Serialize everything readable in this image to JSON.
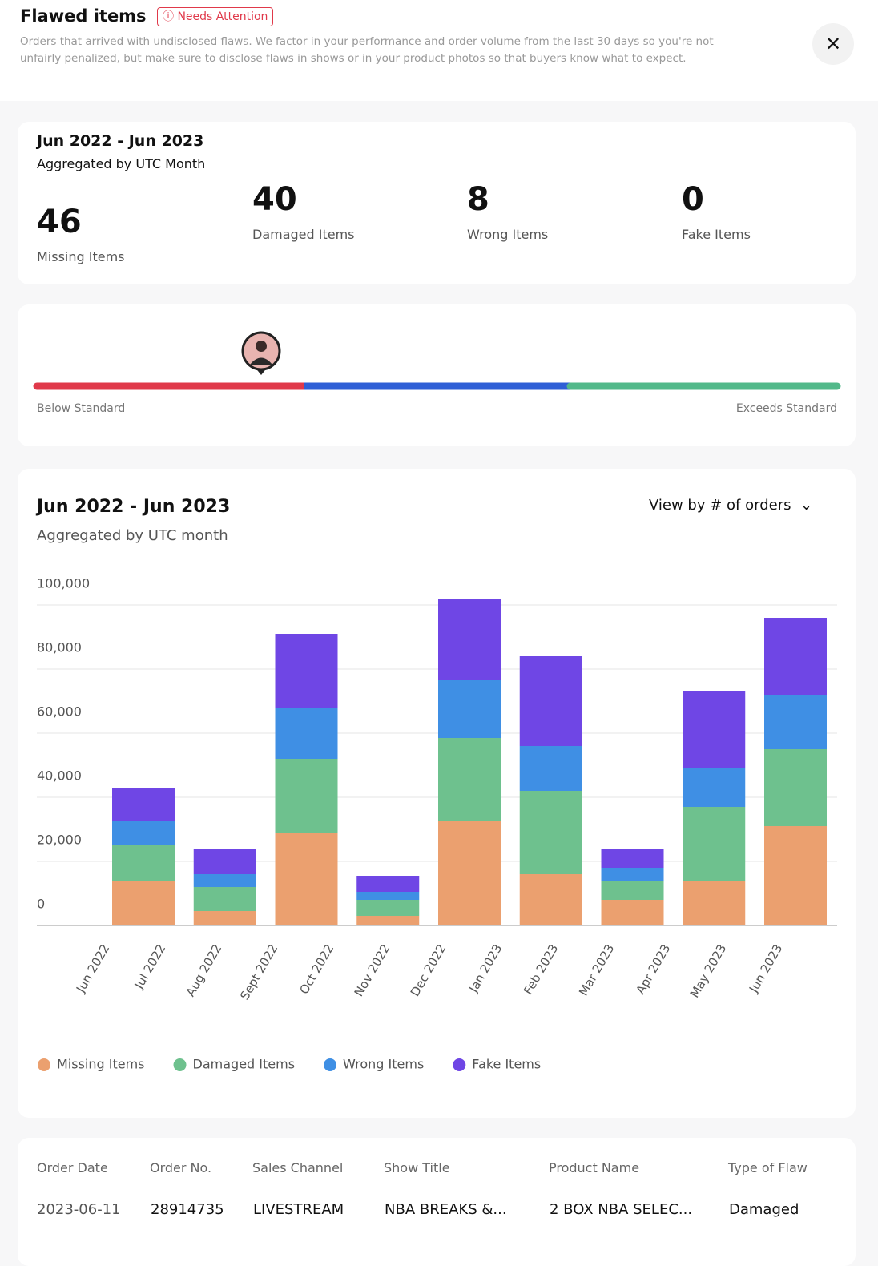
{
  "header": {
    "title": "Flawed items",
    "badge": "Needs Attention",
    "description": "Orders that arrived with undisclosed flaws. We factor in your performance and order volume from the last 30 days so you're not unfairly penalized, but make sure to disclose flaws in shows or in your product photos so that buyers know what to expect."
  },
  "summary": {
    "period": "Jun 2022 - Jun 2023",
    "aggregation": "Aggregated by UTC Month",
    "stats": [
      {
        "value": "46",
        "label": "Missing Items"
      },
      {
        "value": "40",
        "label": "Damaged Items"
      },
      {
        "value": "8",
        "label": "Wrong Items"
      },
      {
        "value": "0",
        "label": "Fake Items"
      }
    ]
  },
  "gauge": {
    "low_label": "Below Standard",
    "high_label": "Exceeds Standard"
  },
  "chart_header": {
    "dropdown": "View by # of orders"
  },
  "chart_data": {
    "type": "stacked_bar",
    "title": "Jun 2022 - Jun 2023",
    "subtitle": "Aggregated by UTC month",
    "categories": [
      "Jun 2022",
      "Jul 2022",
      "Aug 2022",
      "Sept 2022",
      "Oct 2022",
      "Nov 2022",
      "Dec 2022",
      "Jan 2023",
      "Feb 2023",
      "Mar 2023",
      "Apr 2023",
      "May 2023",
      "Jun 2023"
    ],
    "series": [
      {
        "name": "Missing Items",
        "color": "#eba06f",
        "values": [
          null,
          14000,
          4500,
          null,
          29000,
          3000,
          null,
          32500,
          16000,
          null,
          8000,
          14000,
          31000
        ]
      },
      {
        "name": "Damaged Items",
        "color": "#6ec18e",
        "values": [
          null,
          11000,
          7500,
          null,
          23000,
          5000,
          null,
          26000,
          26000,
          null,
          6000,
          23000,
          24000
        ]
      },
      {
        "name": "Wrong Items",
        "color": "#3f8fe4",
        "values": [
          null,
          7500,
          4000,
          null,
          16000,
          2500,
          null,
          18000,
          14000,
          null,
          4000,
          12000,
          17000
        ]
      },
      {
        "name": "Fake Items",
        "color": "#6f46e5",
        "values": [
          null,
          10500,
          8000,
          null,
          23000,
          5000,
          null,
          25500,
          28000,
          null,
          6000,
          24000,
          24000
        ]
      }
    ],
    "ylim": [
      0,
      105000
    ],
    "yticks": [
      0,
      {
        "value": 20000,
        "label": "20,000"
      },
      {
        "value": 40000,
        "label": "40,000"
      },
      {
        "value": 60000,
        "label": "60,000"
      },
      {
        "value": 80000,
        "label": "80,000"
      },
      {
        "value": 100000,
        "label": "100,000"
      }
    ],
    "grid": true,
    "legend": "bottom"
  },
  "table": {
    "headers": [
      "Order Date",
      "Order No.",
      "Sales Channel",
      "Show Title",
      "Product Name",
      "Type of Flaw"
    ],
    "rows": [
      [
        "2023-06-11",
        "28914735",
        "LIVESTREAM",
        "NBA BREAKS &...",
        "2 BOX NBA SELEC...",
        "Damaged"
      ]
    ]
  }
}
